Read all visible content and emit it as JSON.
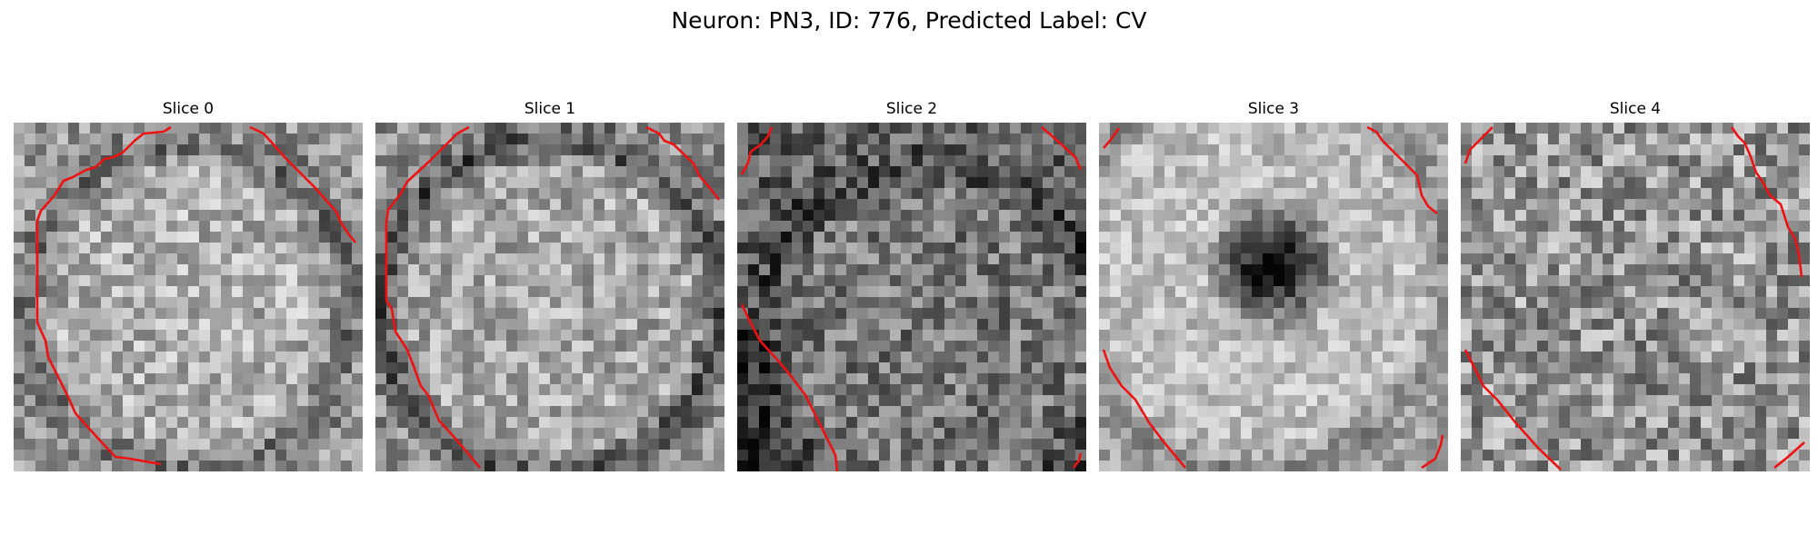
{
  "title": "Neuron: PN3, ID: 776, Predicted Label: CV",
  "overlay_color": "#ee1111",
  "panels": [
    {
      "title": "Slice 0"
    },
    {
      "title": "Slice 1"
    },
    {
      "title": "Slice 2"
    },
    {
      "title": "Slice 3"
    },
    {
      "title": "Slice 4"
    }
  ]
}
